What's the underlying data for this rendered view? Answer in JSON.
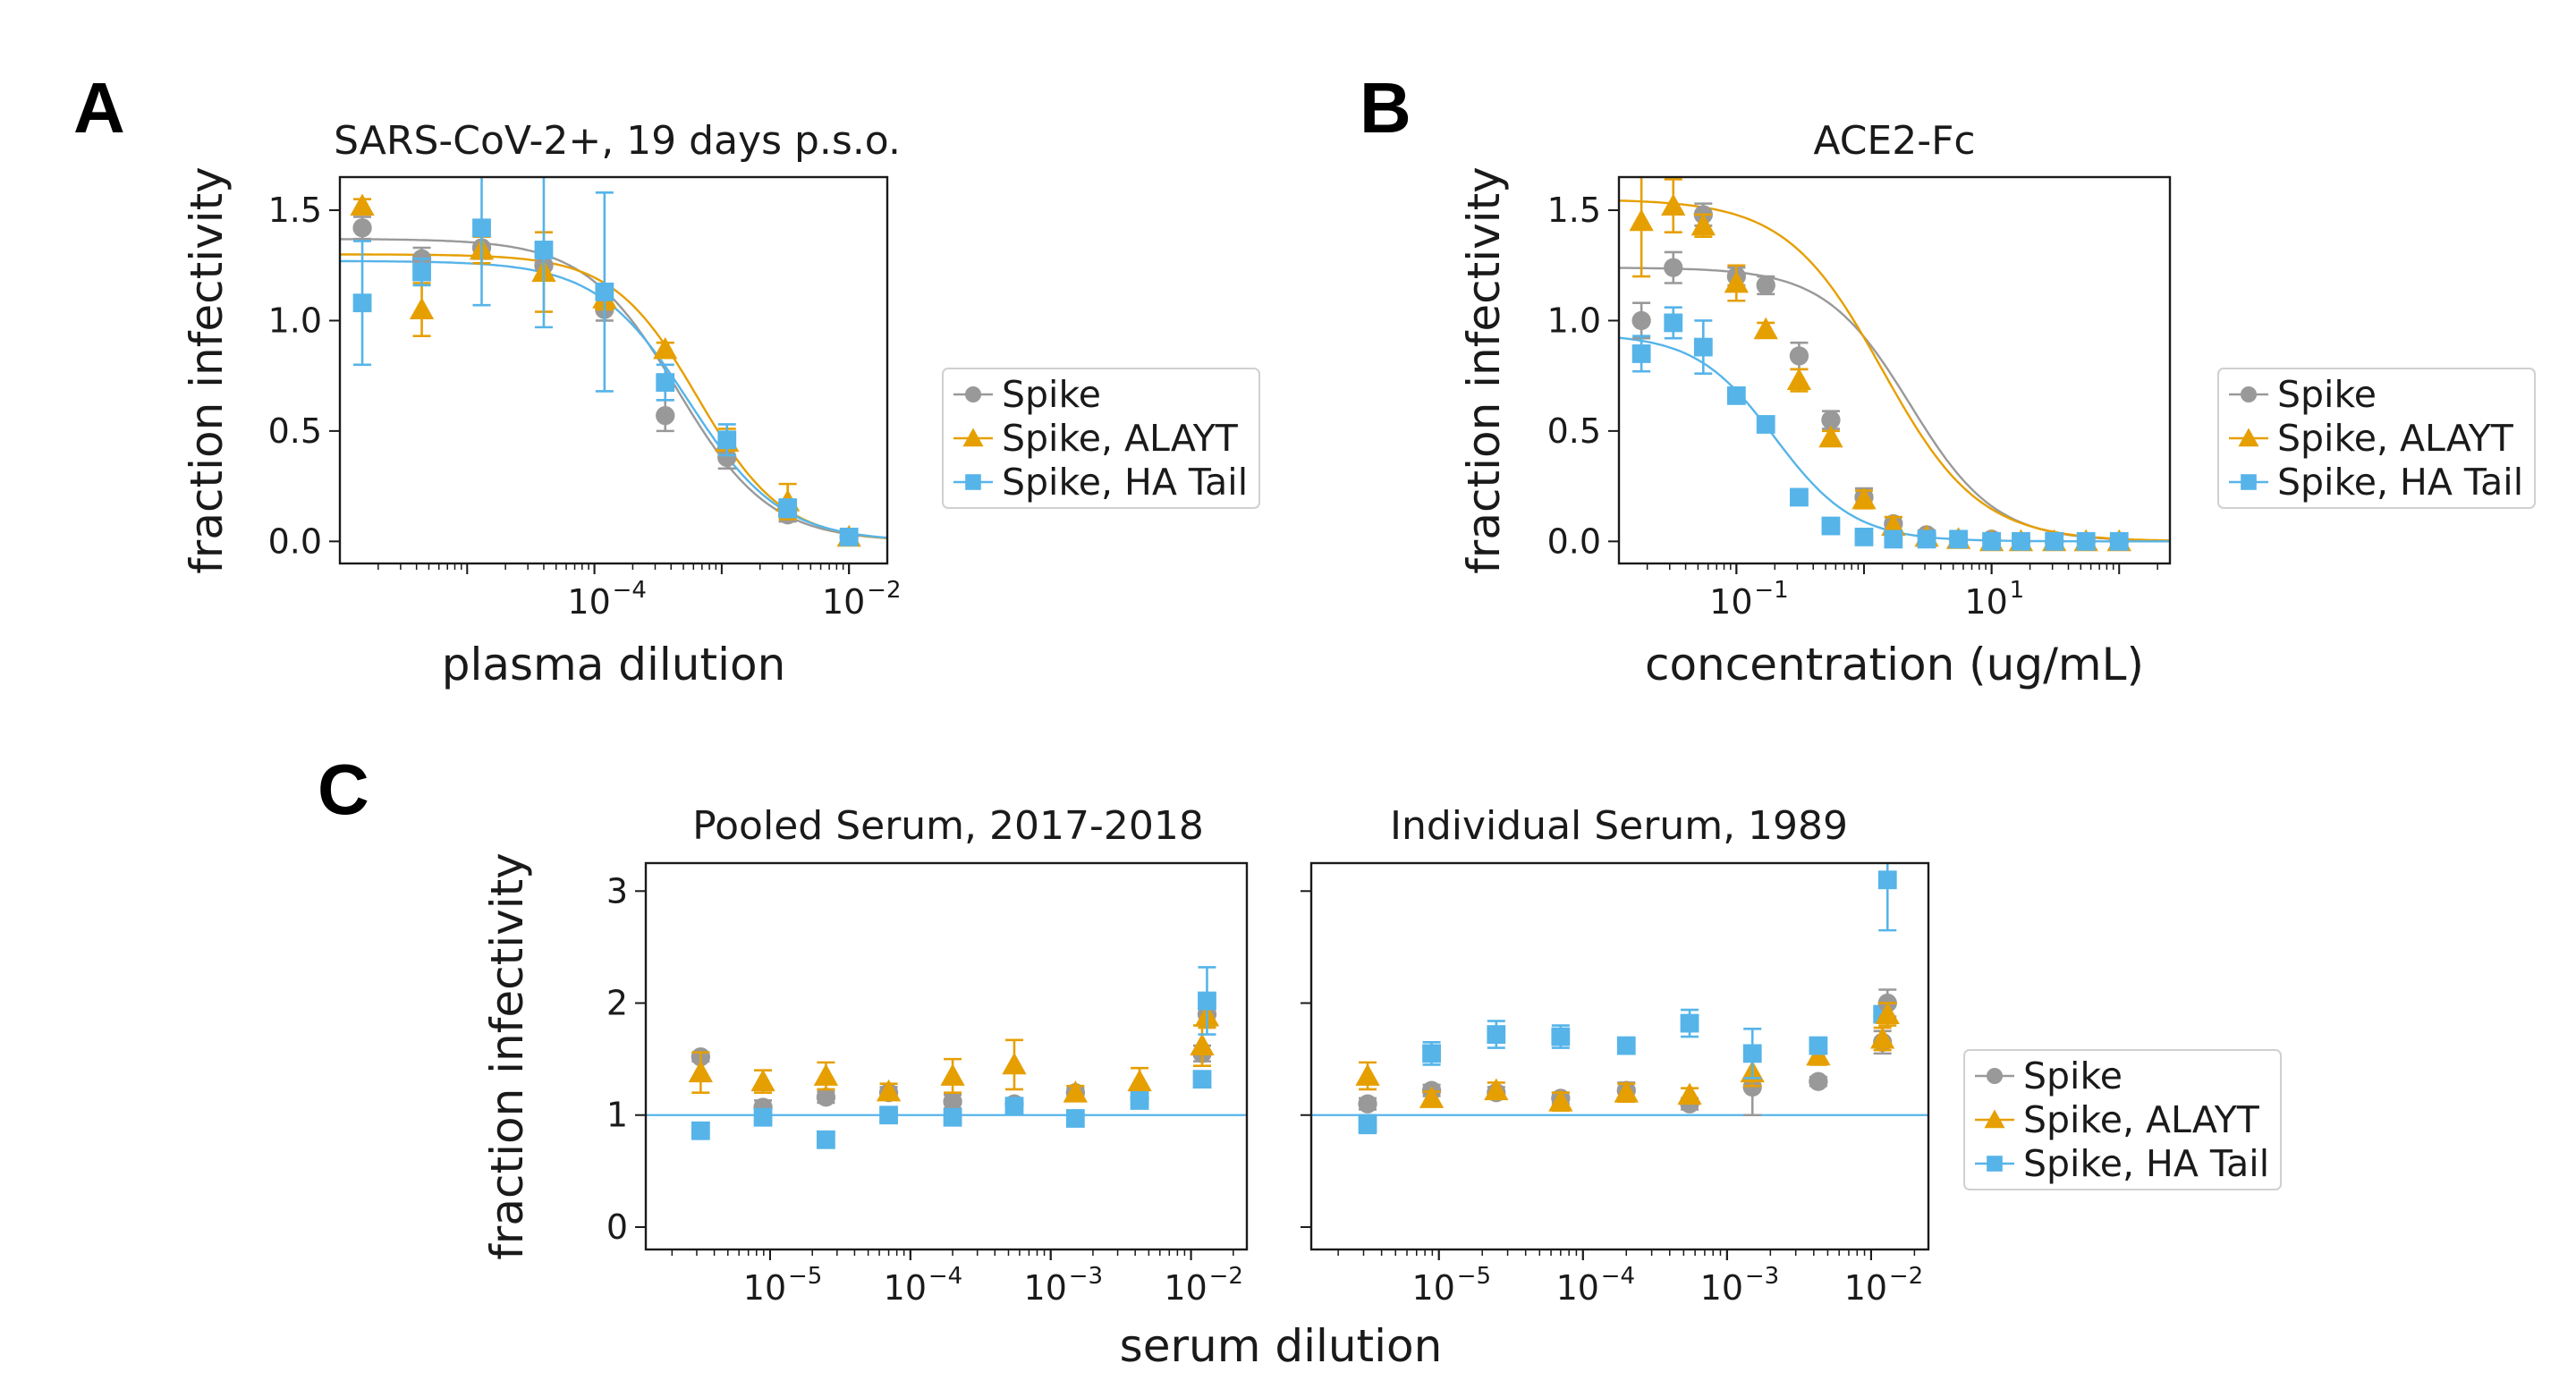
{
  "panel_labels": [
    "A",
    "B",
    "C"
  ],
  "colors": {
    "spike": "#999999",
    "alayt": "#E69F00",
    "hatail": "#56B4E9"
  },
  "legend": [
    "Spike",
    "Spike, ALAYT",
    "Spike, HA Tail"
  ],
  "chart_data": [
    {
      "id": "A",
      "type": "scatter",
      "title": "SARS-CoV-2+, 19 days p.s.o.",
      "xlabel": "plasma dilution",
      "ylabel": "fraction infectivity",
      "xscale": "log",
      "xlim": [
        1e-06,
        0.02
      ],
      "ylim": [
        -0.1,
        1.65
      ],
      "yticks": [
        0.0,
        0.5,
        1.0,
        1.5
      ],
      "ytick_labels": [
        "0.0",
        "0.5",
        "1.0",
        "1.5"
      ],
      "xticks": [
        {
          "base": "10",
          "exp": "−4",
          "value": 0.0001
        },
        {
          "base": "10",
          "exp": "−2",
          "value": 0.01
        }
      ],
      "fits": true,
      "series": [
        {
          "name": "Spike",
          "marker": "circle",
          "color": "#999999",
          "x": [
            1.5e-06,
            4.4e-06,
            1.3e-05,
            4e-05,
            0.00012,
            0.00036,
            0.0011,
            0.0033,
            0.01
          ],
          "y": [
            1.42,
            1.28,
            1.33,
            1.25,
            1.05,
            0.57,
            0.38,
            0.12,
            0.02
          ],
          "err": [
            0.05,
            0.05,
            0.05,
            0.05,
            0.05,
            0.07,
            0.05,
            0.03,
            0.02
          ],
          "fit": {
            "top": 1.37,
            "ic50": 0.00045,
            "hill": 1.2
          }
        },
        {
          "name": "Spike, ALAYT",
          "marker": "triangle",
          "color": "#E69F00",
          "x": [
            1.5e-06,
            4.4e-06,
            1.3e-05,
            4e-05,
            0.00012,
            0.00036,
            0.0011,
            0.0033,
            0.01
          ],
          "y": [
            1.52,
            1.05,
            1.32,
            1.22,
            1.1,
            0.87,
            0.45,
            0.18,
            0.02
          ],
          "err": [
            0.03,
            0.12,
            0.06,
            0.18,
            0.05,
            0.03,
            0.06,
            0.08,
            0.02
          ],
          "fit": {
            "top": 1.3,
            "ic50": 0.00065,
            "hill": 1.3
          }
        },
        {
          "name": "Spike, HA Tail",
          "marker": "square",
          "color": "#56B4E9",
          "x": [
            1.5e-06,
            4.4e-06,
            1.3e-05,
            4e-05,
            0.00012,
            0.00036,
            0.0011,
            0.0033,
            0.01
          ],
          "y": [
            1.08,
            1.22,
            1.42,
            1.32,
            1.13,
            0.72,
            0.46,
            0.15,
            0.02
          ],
          "err": [
            0.28,
            0.06,
            0.35,
            0.35,
            0.45,
            0.08,
            0.07,
            0.04,
            0.02
          ],
          "fit": {
            "top": 1.27,
            "ic50": 0.00055,
            "hill": 1.2
          }
        }
      ]
    },
    {
      "id": "B",
      "type": "scatter",
      "title": "ACE2-Fc",
      "xlabel": "concentration (ug/mL)",
      "ylabel": "fraction infectivity",
      "xscale": "log",
      "xlim": [
        0.012,
        250
      ],
      "ylim": [
        -0.1,
        1.65
      ],
      "yticks": [
        0.0,
        0.5,
        1.0,
        1.5
      ],
      "ytick_labels": [
        "0.0",
        "0.5",
        "1.0",
        "1.5"
      ],
      "xticks": [
        {
          "base": "10",
          "exp": "−1",
          "value": 0.1
        },
        {
          "base": "10",
          "exp": "1",
          "value": 10
        }
      ],
      "fits": true,
      "series": [
        {
          "name": "Spike",
          "marker": "circle",
          "color": "#999999",
          "x": [
            0.018,
            0.032,
            0.055,
            0.1,
            0.17,
            0.31,
            0.55,
            1,
            1.7,
            3.1,
            5.5,
            10,
            17,
            31,
            55,
            100
          ],
          "y": [
            1.0,
            1.24,
            1.48,
            1.2,
            1.16,
            0.84,
            0.55,
            0.2,
            0.08,
            0.03,
            0.01,
            0.01,
            0.0,
            0.0,
            0.0,
            0.0
          ],
          "err": [
            0.08,
            0.07,
            0.05,
            0.04,
            0.04,
            0.06,
            0.04,
            0.04,
            0.03,
            0.02,
            0.02,
            0.02,
            0.0,
            0.0,
            0.0,
            0.0
          ],
          "fit": {
            "top": 1.24,
            "ic50": 2.3,
            "hill": 1.3
          }
        },
        {
          "name": "Spike, ALAYT",
          "marker": "triangle",
          "color": "#E69F00",
          "x": [
            0.018,
            0.032,
            0.055,
            0.1,
            0.17,
            0.31,
            0.55,
            1,
            1.7,
            3.1,
            5.5,
            10,
            17,
            31,
            55,
            100
          ],
          "y": [
            1.45,
            1.52,
            1.43,
            1.17,
            0.96,
            0.73,
            0.47,
            0.19,
            0.07,
            0.02,
            0.01,
            0.0,
            0.0,
            0.0,
            0.0,
            0.0
          ],
          "err": [
            0.25,
            0.12,
            0.05,
            0.08,
            0.03,
            0.05,
            0.03,
            0.04,
            0.04,
            0.02,
            0.02,
            0.01,
            0.0,
            0.0,
            0.0,
            0.0
          ],
          "fit": {
            "top": 1.55,
            "ic50": 1.4,
            "hill": 1.15
          }
        },
        {
          "name": "Spike, HA Tail",
          "marker": "square",
          "color": "#56B4E9",
          "x": [
            0.018,
            0.032,
            0.055,
            0.1,
            0.17,
            0.31,
            0.55,
            1,
            1.7,
            3.1,
            5.5,
            10,
            17,
            31,
            55,
            100
          ],
          "y": [
            0.85,
            0.99,
            0.88,
            0.66,
            0.53,
            0.2,
            0.07,
            0.02,
            0.01,
            0.01,
            0.01,
            0.0,
            0.0,
            0.0,
            0.0,
            0.0
          ],
          "err": [
            0.08,
            0.07,
            0.12,
            0.03,
            0.03,
            0.03,
            0.02,
            0.02,
            0.01,
            0.01,
            0.01,
            0.0,
            0.0,
            0.0,
            0.0,
            0.0
          ],
          "fit": {
            "top": 0.94,
            "ic50": 0.2,
            "hill": 1.4
          }
        }
      ]
    },
    {
      "id": "C1",
      "type": "scatter",
      "title": "Pooled Serum, 2017-2018",
      "xlabel": "serum dilution",
      "ylabel": "fraction infectivity",
      "xscale": "log",
      "xlim": [
        1.3e-06,
        0.025
      ],
      "ylim": [
        -0.2,
        3.25
      ],
      "yticks": [
        0,
        1,
        2,
        3
      ],
      "ytick_labels": [
        "0",
        "1",
        "2",
        "3"
      ],
      "xticks": [
        {
          "base": "10",
          "exp": "−5",
          "value": 1e-05
        },
        {
          "base": "10",
          "exp": "−4",
          "value": 0.0001
        },
        {
          "base": "10",
          "exp": "−3",
          "value": 0.001
        },
        {
          "base": "10",
          "exp": "−2",
          "value": 0.01
        }
      ],
      "reference_line": 1,
      "series": [
        {
          "name": "Spike",
          "marker": "circle",
          "color": "#999999",
          "x": [
            3.2e-06,
            8.9e-06,
            2.5e-05,
            7e-05,
            0.0002,
            0.00055,
            0.0015,
            0.0043,
            0.012
          ],
          "y": [
            1.52,
            1.07,
            1.16,
            1.2,
            1.12,
            1.1,
            1.2,
            1.15,
            1.55
          ],
          "err": [
            0.04,
            0.06,
            0.05,
            0.05,
            0.06,
            0.05,
            0.04,
            0.05,
            0.07
          ]
        },
        {
          "name": "Spike, ALAYT",
          "marker": "triangle",
          "color": "#E69F00",
          "x": [
            3.2e-06,
            8.9e-06,
            2.5e-05,
            7e-05,
            0.0002,
            0.00055,
            0.0015,
            0.0043,
            0.012
          ],
          "y": [
            1.38,
            1.3,
            1.35,
            1.21,
            1.35,
            1.45,
            1.2,
            1.3,
            1.62
          ],
          "err": [
            0.18,
            0.1,
            0.12,
            0.07,
            0.15,
            0.22,
            0.06,
            0.12,
            0.18
          ]
        },
        {
          "name": "Spike, HA Tail",
          "marker": "square",
          "color": "#56B4E9",
          "x": [
            3.2e-06,
            8.9e-06,
            2.5e-05,
            7e-05,
            0.0002,
            0.00055,
            0.0015,
            0.0043,
            0.012
          ],
          "y": [
            0.86,
            0.98,
            0.78,
            1.0,
            0.98,
            1.08,
            0.97,
            1.13,
            1.32
          ]
        },
        {
          "name": "Spike",
          "marker": "circle",
          "color": "#999999",
          "x": [
            0.013
          ],
          "y": [
            1.9
          ],
          "err": [
            0.1
          ]
        },
        {
          "name": "Spike, ALAYT",
          "marker": "triangle",
          "color": "#E69F00",
          "x": [
            0.013
          ],
          "y": [
            1.88
          ],
          "err": [
            0.1
          ]
        },
        {
          "name": "Spike, HA Tail",
          "marker": "square",
          "color": "#56B4E9",
          "x": [
            0.013
          ],
          "y": [
            2.02
          ],
          "err": [
            0.3
          ]
        }
      ]
    },
    {
      "id": "C2",
      "type": "scatter",
      "title": "Individual Serum, 1989",
      "xlabel": "",
      "ylabel": "",
      "xscale": "log",
      "xlim": [
        1.3e-06,
        0.025
      ],
      "ylim": [
        -0.2,
        3.25
      ],
      "yticks": [
        0,
        1,
        2,
        3
      ],
      "ytick_labels": [
        "",
        "",
        "",
        ""
      ],
      "xticks": [
        {
          "base": "10",
          "exp": "−5",
          "value": 1e-05
        },
        {
          "base": "10",
          "exp": "−4",
          "value": 0.0001
        },
        {
          "base": "10",
          "exp": "−3",
          "value": 0.001
        },
        {
          "base": "10",
          "exp": "−2",
          "value": 0.01
        }
      ],
      "reference_line": 1,
      "series": [
        {
          "name": "Spike",
          "marker": "circle",
          "color": "#999999",
          "x": [
            3.2e-06,
            8.9e-06,
            2.5e-05,
            7e-05,
            0.0002,
            0.00055,
            0.0015,
            0.0043,
            0.012
          ],
          "y": [
            1.1,
            1.22,
            1.2,
            1.15,
            1.22,
            1.1,
            1.25,
            1.3,
            1.65
          ],
          "err": [
            0.05,
            0.05,
            0.05,
            0.05,
            0.07,
            0.05,
            0.25,
            0.04,
            0.1
          ]
        },
        {
          "name": "Spike, ALAYT",
          "marker": "triangle",
          "color": "#E69F00",
          "x": [
            3.2e-06,
            8.9e-06,
            2.5e-05,
            7e-05,
            0.0002,
            0.00055,
            0.0015,
            0.0043,
            0.012
          ],
          "y": [
            1.35,
            1.15,
            1.22,
            1.12,
            1.2,
            1.18,
            1.38,
            1.53,
            1.68
          ],
          "err": [
            0.12,
            0.06,
            0.07,
            0.08,
            0.08,
            0.06,
            0.12,
            0.08,
            0.1
          ]
        },
        {
          "name": "Spike, HA Tail",
          "marker": "square",
          "color": "#56B4E9",
          "x": [
            3.2e-06,
            8.9e-06,
            2.5e-05,
            7e-05,
            0.0002,
            0.00055,
            0.0015,
            0.0043,
            0.012
          ],
          "y": [
            0.92,
            1.55,
            1.72,
            1.7,
            1.62,
            1.82,
            1.55,
            1.62,
            1.9
          ],
          "err": [
            0.08,
            0.1,
            0.12,
            0.1,
            0.05,
            0.12,
            0.22,
            0.06,
            0.06
          ]
        },
        {
          "name": "Spike",
          "marker": "circle",
          "color": "#999999",
          "x": [
            0.013
          ],
          "y": [
            2.0
          ],
          "err": [
            0.12
          ]
        },
        {
          "name": "Spike, ALAYT",
          "marker": "triangle",
          "color": "#E69F00",
          "x": [
            0.013
          ],
          "y": [
            1.9
          ],
          "err": [
            0.1
          ]
        },
        {
          "name": "Spike, HA Tail",
          "marker": "square",
          "color": "#56B4E9",
          "x": [
            0.013
          ],
          "y": [
            3.1
          ],
          "err": [
            0.45
          ]
        }
      ]
    }
  ]
}
